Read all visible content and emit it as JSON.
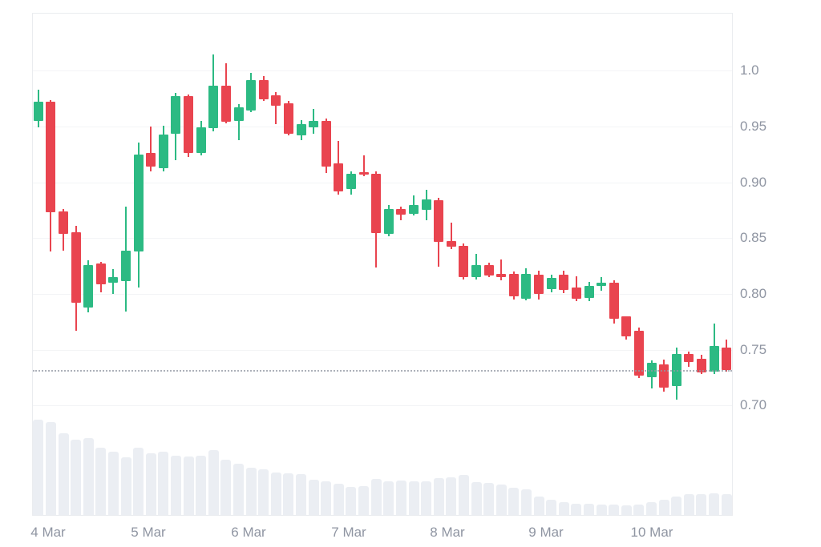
{
  "colors": {
    "up": "#2cba83",
    "down": "#e9444f",
    "volume_bar": "#ebeef3",
    "grid": "#f3f4f6",
    "border": "#eaecef",
    "axis_text": "#8f95a2",
    "price_line": "#9298a3",
    "background": "#ffffff"
  },
  "chart_data": {
    "type": "candlestick",
    "title": "",
    "legend": "none",
    "grid": "horizontal-only",
    "y_axis_position": "right",
    "y_axis": {
      "range_top": 1.052,
      "range_bottom": 0.601,
      "ticks": [
        {
          "label": "1.0",
          "value": 1.0
        },
        {
          "label": "0.95",
          "value": 0.95
        },
        {
          "label": "0.90",
          "value": 0.9
        },
        {
          "label": "0.85",
          "value": 0.85
        },
        {
          "label": "0.80",
          "value": 0.8
        },
        {
          "label": "0.75",
          "value": 0.75
        },
        {
          "label": "0.70",
          "value": 0.7
        }
      ]
    },
    "x_axis": {
      "ticks": [
        {
          "label": "4 Mar",
          "pos": 0.023
        },
        {
          "label": "5 Mar",
          "pos": 0.166
        },
        {
          "label": "6 Mar",
          "pos": 0.309
        },
        {
          "label": "7 Mar",
          "pos": 0.452
        },
        {
          "label": "8 Mar",
          "pos": 0.593
        },
        {
          "label": "9 Mar",
          "pos": 0.733
        },
        {
          "label": "10 Mar",
          "pos": 0.884
        }
      ]
    },
    "price_line": {
      "value": 0.732,
      "style": "dotted"
    },
    "candles": [
      {
        "o": 0.955,
        "h": 0.983,
        "l": 0.949,
        "c": 0.972,
        "v": 1.0
      },
      {
        "o": 0.972,
        "h": 0.974,
        "l": 0.838,
        "c": 0.873,
        "v": 0.975
      },
      {
        "o": 0.874,
        "h": 0.876,
        "l": 0.839,
        "c": 0.854,
        "v": 0.86
      },
      {
        "o": 0.855,
        "h": 0.861,
        "l": 0.767,
        "c": 0.792,
        "v": 0.79
      },
      {
        "o": 0.788,
        "h": 0.83,
        "l": 0.783,
        "c": 0.826,
        "v": 0.81
      },
      {
        "o": 0.827,
        "h": 0.829,
        "l": 0.802,
        "c": 0.808,
        "v": 0.71
      },
      {
        "o": 0.81,
        "h": 0.822,
        "l": 0.8,
        "c": 0.815,
        "v": 0.67
      },
      {
        "o": 0.812,
        "h": 0.878,
        "l": 0.784,
        "c": 0.839,
        "v": 0.61
      },
      {
        "o": 0.838,
        "h": 0.936,
        "l": 0.806,
        "c": 0.925,
        "v": 0.71
      },
      {
        "o": 0.926,
        "h": 0.95,
        "l": 0.91,
        "c": 0.914,
        "v": 0.65
      },
      {
        "o": 0.913,
        "h": 0.951,
        "l": 0.91,
        "c": 0.943,
        "v": 0.67
      },
      {
        "o": 0.943,
        "h": 0.98,
        "l": 0.92,
        "c": 0.977,
        "v": 0.625
      },
      {
        "o": 0.977,
        "h": 0.979,
        "l": 0.923,
        "c": 0.926,
        "v": 0.62
      },
      {
        "o": 0.926,
        "h": 0.955,
        "l": 0.924,
        "c": 0.949,
        "v": 0.625
      },
      {
        "o": 0.949,
        "h": 1.015,
        "l": 0.946,
        "c": 0.987,
        "v": 0.68
      },
      {
        "o": 0.987,
        "h": 1.007,
        "l": 0.953,
        "c": 0.955,
        "v": 0.58
      },
      {
        "o": 0.955,
        "h": 0.97,
        "l": 0.938,
        "c": 0.967,
        "v": 0.54
      },
      {
        "o": 0.965,
        "h": 0.998,
        "l": 0.963,
        "c": 0.992,
        "v": 0.5
      },
      {
        "o": 0.992,
        "h": 0.995,
        "l": 0.973,
        "c": 0.975,
        "v": 0.48
      },
      {
        "o": 0.978,
        "h": 0.981,
        "l": 0.952,
        "c": 0.969,
        "v": 0.45
      },
      {
        "o": 0.971,
        "h": 0.973,
        "l": 0.942,
        "c": 0.944,
        "v": 0.44
      },
      {
        "o": 0.942,
        "h": 0.956,
        "l": 0.938,
        "c": 0.952,
        "v": 0.43
      },
      {
        "o": 0.949,
        "h": 0.966,
        "l": 0.944,
        "c": 0.955,
        "v": 0.375
      },
      {
        "o": 0.955,
        "h": 0.957,
        "l": 0.908,
        "c": 0.914,
        "v": 0.36
      },
      {
        "o": 0.917,
        "h": 0.937,
        "l": 0.889,
        "c": 0.892,
        "v": 0.33
      },
      {
        "o": 0.894,
        "h": 0.91,
        "l": 0.889,
        "c": 0.908,
        "v": 0.3
      },
      {
        "o": 0.909,
        "h": 0.924,
        "l": 0.905,
        "c": 0.907,
        "v": 0.31
      },
      {
        "o": 0.908,
        "h": 0.91,
        "l": 0.824,
        "c": 0.855,
        "v": 0.38
      },
      {
        "o": 0.854,
        "h": 0.88,
        "l": 0.852,
        "c": 0.876,
        "v": 0.36
      },
      {
        "o": 0.876,
        "h": 0.878,
        "l": 0.866,
        "c": 0.871,
        "v": 0.37
      },
      {
        "o": 0.872,
        "h": 0.888,
        "l": 0.87,
        "c": 0.88,
        "v": 0.36
      },
      {
        "o": 0.876,
        "h": 0.893,
        "l": 0.866,
        "c": 0.885,
        "v": 0.36
      },
      {
        "o": 0.884,
        "h": 0.886,
        "l": 0.824,
        "c": 0.847,
        "v": 0.39
      },
      {
        "o": 0.847,
        "h": 0.864,
        "l": 0.84,
        "c": 0.842,
        "v": 0.4
      },
      {
        "o": 0.843,
        "h": 0.845,
        "l": 0.813,
        "c": 0.815,
        "v": 0.425
      },
      {
        "o": 0.815,
        "h": 0.836,
        "l": 0.813,
        "c": 0.826,
        "v": 0.35
      },
      {
        "o": 0.826,
        "h": 0.828,
        "l": 0.815,
        "c": 0.817,
        "v": 0.34
      },
      {
        "o": 0.818,
        "h": 0.831,
        "l": 0.812,
        "c": 0.815,
        "v": 0.325
      },
      {
        "o": 0.818,
        "h": 0.82,
        "l": 0.795,
        "c": 0.798,
        "v": 0.29
      },
      {
        "o": 0.796,
        "h": 0.823,
        "l": 0.794,
        "c": 0.818,
        "v": 0.275
      },
      {
        "o": 0.817,
        "h": 0.821,
        "l": 0.795,
        "c": 0.8,
        "v": 0.2
      },
      {
        "o": 0.804,
        "h": 0.817,
        "l": 0.801,
        "c": 0.814,
        "v": 0.17
      },
      {
        "o": 0.817,
        "h": 0.821,
        "l": 0.801,
        "c": 0.803,
        "v": 0.14
      },
      {
        "o": 0.806,
        "h": 0.816,
        "l": 0.794,
        "c": 0.796,
        "v": 0.125
      },
      {
        "o": 0.796,
        "h": 0.811,
        "l": 0.794,
        "c": 0.807,
        "v": 0.125
      },
      {
        "o": 0.807,
        "h": 0.815,
        "l": 0.803,
        "c": 0.81,
        "v": 0.12
      },
      {
        "o": 0.81,
        "h": 0.812,
        "l": 0.773,
        "c": 0.778,
        "v": 0.12
      },
      {
        "o": 0.78,
        "h": 0.78,
        "l": 0.759,
        "c": 0.762,
        "v": 0.11
      },
      {
        "o": 0.767,
        "h": 0.77,
        "l": 0.725,
        "c": 0.727,
        "v": 0.12
      },
      {
        "o": 0.725,
        "h": 0.74,
        "l": 0.715,
        "c": 0.738,
        "v": 0.14
      },
      {
        "o": 0.737,
        "h": 0.741,
        "l": 0.712,
        "c": 0.716,
        "v": 0.17
      },
      {
        "o": 0.717,
        "h": 0.752,
        "l": 0.705,
        "c": 0.746,
        "v": 0.2
      },
      {
        "o": 0.746,
        "h": 0.748,
        "l": 0.734,
        "c": 0.739,
        "v": 0.225
      },
      {
        "o": 0.742,
        "h": 0.745,
        "l": 0.728,
        "c": 0.73,
        "v": 0.225
      },
      {
        "o": 0.73,
        "h": 0.773,
        "l": 0.728,
        "c": 0.753,
        "v": 0.23
      },
      {
        "o": 0.752,
        "h": 0.759,
        "l": 0.73,
        "c": 0.732,
        "v": 0.225
      }
    ]
  }
}
